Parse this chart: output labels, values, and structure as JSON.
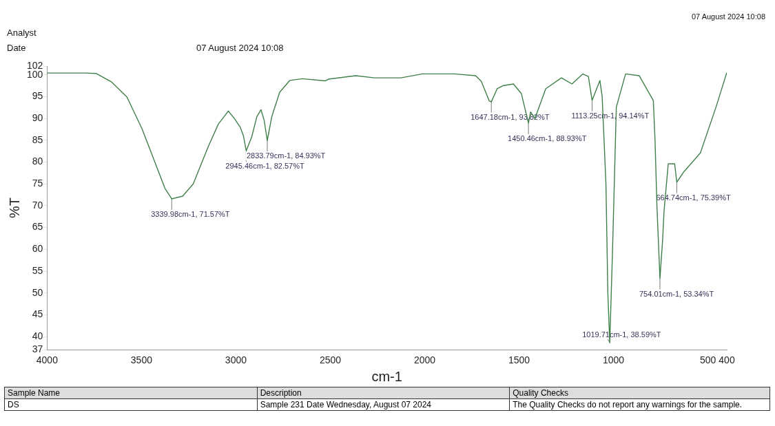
{
  "chart_data": {
    "type": "line",
    "xlabel": "cm-1",
    "ylabel": "%T",
    "xlim": [
      4000,
      400
    ],
    "xticks": [
      4000,
      3500,
      3000,
      2500,
      2000,
      1500,
      1000,
      500,
      400
    ],
    "ylim": [
      37,
      102
    ],
    "yticks": [
      37,
      40,
      45,
      50,
      55,
      60,
      65,
      70,
      75,
      80,
      85,
      90,
      95,
      100,
      102
    ],
    "grid": false,
    "legend": false,
    "marker": "none",
    "line_style": "solid",
    "series": [
      {
        "color": "#3f7f4a",
        "x": [
          4000,
          3900,
          3800,
          3739,
          3660,
          3577,
          3497,
          3430,
          3376,
          3339.98,
          3282,
          3226,
          3146,
          3093,
          3040,
          3010,
          2976,
          2960,
          2945.46,
          2916,
          2889,
          2867,
          2850,
          2833.79,
          2810,
          2768,
          2715,
          2648,
          2527,
          2510,
          2364,
          2266,
          2126,
          2013,
          1843,
          1730,
          1700,
          1658,
          1647.18,
          1616,
          1586,
          1530,
          1488,
          1450.46,
          1439,
          1416,
          1359,
          1276,
          1220,
          1163,
          1133,
          1113.25,
          1072,
          1060,
          1040,
          1030,
          1019.71,
          1005,
          985,
          936,
          864,
          789,
          780,
          770,
          754.01,
          740,
          732,
          710,
          676,
          664.74,
          627,
          540,
          457,
          400
        ],
        "values": [
          100.4,
          100.4,
          100.4,
          100.3,
          98.4,
          94.9,
          87.6,
          80.1,
          74,
          71.57,
          72.2,
          75,
          83.6,
          88.7,
          91.7,
          90.1,
          87.9,
          86,
          82.57,
          85.8,
          90.4,
          92,
          89.5,
          84.93,
          90.4,
          96,
          98.7,
          99.1,
          98.6,
          99,
          99.8,
          99.3,
          99.3,
          100.2,
          100.2,
          99.8,
          98.5,
          94,
          93.82,
          96.8,
          97.5,
          97.9,
          95.7,
          88.93,
          91.5,
          90,
          96.8,
          99.3,
          97.9,
          100.2,
          99.6,
          94.14,
          98.7,
          95,
          75,
          50,
          38.59,
          60,
          92.6,
          100.2,
          99.8,
          94.1,
          85,
          70,
          53.34,
          62,
          68.9,
          79.6,
          79.6,
          75.39,
          77.8,
          82.1,
          92.6,
          100.5
        ]
      }
    ],
    "annotations": [
      "Analyst",
      "Date",
      "07 August 2024 10:08",
      "07 August 2024 10:08",
      "Sample Name",
      "Description",
      "Quality Checks",
      "DS",
      "Sample 231 Date Wednesday, August 07 2024",
      "The Quality Checks do not report any warnings for the sample.",
      {
        "text": "3339.98cm-1, 71.57%T",
        "x": 3339.98,
        "y": 71.57
      },
      {
        "text": "2945.46cm-1, 82.57%T",
        "x": 2945.46,
        "y": 82.57
      },
      {
        "text": "2833.79cm-1, 84.93%T",
        "x": 2833.79,
        "y": 84.93
      },
      {
        "text": "1647.18cm-1, 93.82%T",
        "x": 1647.18,
        "y": 93.82
      },
      {
        "text": "1450.46cm-1, 88.93%T",
        "x": 1450.46,
        "y": 88.93
      },
      {
        "text": "1113.25cm-1, 94.14%T",
        "x": 1113.25,
        "y": 94.14
      },
      {
        "text": "1019.71cm-1, 38.59%T",
        "x": 1019.71,
        "y": 38.59
      },
      {
        "text": "754.01cm-1, 53.34%T",
        "x": 754.01,
        "y": 53.34
      },
      {
        "text": "664.74cm-1, 75.39%T",
        "x": 664.74,
        "y": 75.39
      }
    ]
  }
}
